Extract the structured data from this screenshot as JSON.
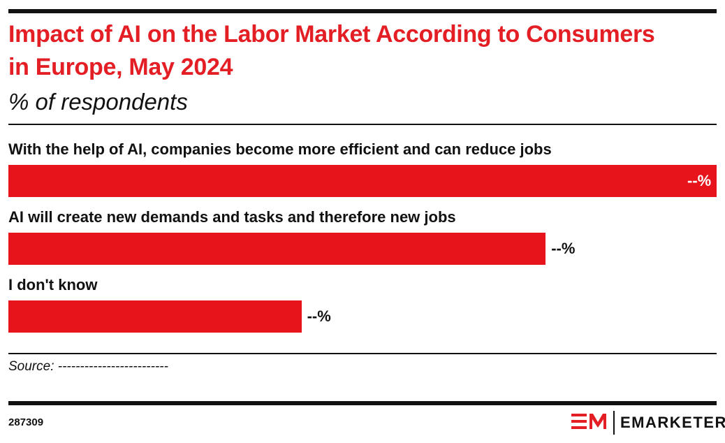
{
  "chart_data": {
    "type": "bar",
    "orientation": "horizontal",
    "title": "Impact of AI on the Labor Market According to Consumers in Europe, May 2024",
    "subtitle": "% of respondents",
    "categories": [
      "With the help of AI, companies become more efficient and can reduce jobs",
      "AI will create new demands and tasks and therefore new jobs",
      "I don't know"
    ],
    "values": [
      58,
      44,
      24
    ],
    "value_labels": [
      "--%",
      "--%",
      "--%"
    ],
    "color": "#e8141c",
    "source": "Source: -------------------------"
  },
  "footer": {
    "id": "287309",
    "brand": "EMARKETER"
  }
}
